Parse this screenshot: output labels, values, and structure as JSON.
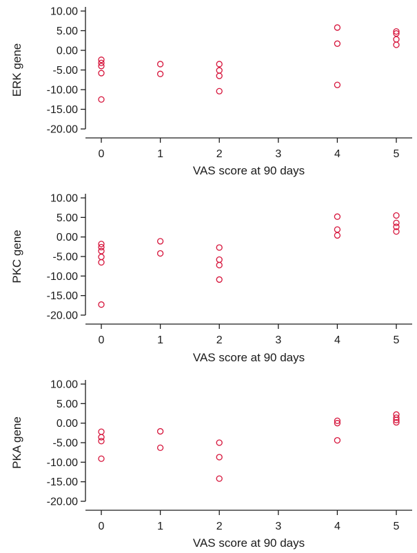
{
  "chart_data": [
    {
      "type": "scatter",
      "xlabel": "VAS score at 90 days",
      "ylabel": "ERK gene",
      "xlim": [
        -0.25,
        5.25
      ],
      "ylim": [
        -20,
        10
      ],
      "xticks": [
        "0",
        "1",
        "2",
        "3",
        "4",
        "5"
      ],
      "yticks": [
        "10.00",
        "5.00",
        "0.00",
        "-5.00",
        "-10.00",
        "-15.00",
        "-20.00"
      ],
      "marker": "open-circle",
      "color": "#d6133a",
      "grid": false,
      "points": [
        {
          "x": 0,
          "y": -2.4
        },
        {
          "x": 0,
          "y": -3.2
        },
        {
          "x": 0,
          "y": -4.0
        },
        {
          "x": 0,
          "y": -5.8
        },
        {
          "x": 0,
          "y": -12.5
        },
        {
          "x": 1,
          "y": -3.5
        },
        {
          "x": 1,
          "y": -6.0
        },
        {
          "x": 2,
          "y": -3.5
        },
        {
          "x": 2,
          "y": -5.1
        },
        {
          "x": 2,
          "y": -6.5
        },
        {
          "x": 2,
          "y": -10.4
        },
        {
          "x": 4,
          "y": 5.8
        },
        {
          "x": 4,
          "y": 1.7
        },
        {
          "x": 4,
          "y": -8.8
        },
        {
          "x": 5,
          "y": 4.8
        },
        {
          "x": 5,
          "y": 4.3
        },
        {
          "x": 5,
          "y": 2.8
        },
        {
          "x": 5,
          "y": 1.4
        }
      ]
    },
    {
      "type": "scatter",
      "xlabel": "VAS score at 90 days",
      "ylabel": "PKC gene",
      "xlim": [
        -0.25,
        5.25
      ],
      "ylim": [
        -20,
        10
      ],
      "xticks": [
        "0",
        "1",
        "2",
        "3",
        "4",
        "5"
      ],
      "yticks": [
        "10.00",
        "5.00",
        "0.00",
        "-5.00",
        "-10.00",
        "-15.00",
        "-20.00"
      ],
      "marker": "open-circle",
      "color": "#d6133a",
      "grid": false,
      "points": [
        {
          "x": 0,
          "y": -1.8
        },
        {
          "x": 0,
          "y": -2.6
        },
        {
          "x": 0,
          "y": -3.6
        },
        {
          "x": 0,
          "y": -5.1
        },
        {
          "x": 0,
          "y": -6.5
        },
        {
          "x": 0,
          "y": -17.3
        },
        {
          "x": 1,
          "y": -1.1
        },
        {
          "x": 1,
          "y": -4.2
        },
        {
          "x": 2,
          "y": -2.7
        },
        {
          "x": 2,
          "y": -5.8
        },
        {
          "x": 2,
          "y": -7.2
        },
        {
          "x": 2,
          "y": -10.9
        },
        {
          "x": 4,
          "y": 5.2
        },
        {
          "x": 4,
          "y": 1.9
        },
        {
          "x": 4,
          "y": 0.4
        },
        {
          "x": 5,
          "y": 5.5
        },
        {
          "x": 5,
          "y": 3.6
        },
        {
          "x": 5,
          "y": 2.6
        },
        {
          "x": 5,
          "y": 1.4
        }
      ]
    },
    {
      "type": "scatter",
      "xlabel": "VAS score at 90 days",
      "ylabel": "PKA gene",
      "xlim": [
        -0.25,
        5.25
      ],
      "ylim": [
        -20,
        10
      ],
      "xticks": [
        "0",
        "1",
        "2",
        "3",
        "4",
        "5"
      ],
      "yticks": [
        "10.00",
        "5.00",
        "0.00",
        "-5.00",
        "-10.00",
        "-15.00",
        "-20.00"
      ],
      "marker": "open-circle",
      "color": "#d6133a",
      "grid": false,
      "points": [
        {
          "x": 0,
          "y": -2.2
        },
        {
          "x": 0,
          "y": -3.6
        },
        {
          "x": 0,
          "y": -4.6
        },
        {
          "x": 0,
          "y": -9.1
        },
        {
          "x": 1,
          "y": -2.1
        },
        {
          "x": 1,
          "y": -6.3
        },
        {
          "x": 2,
          "y": -5.0
        },
        {
          "x": 2,
          "y": -8.7
        },
        {
          "x": 2,
          "y": -14.2
        },
        {
          "x": 4,
          "y": 0.6
        },
        {
          "x": 4,
          "y": 0.0
        },
        {
          "x": 4,
          "y": -4.4
        },
        {
          "x": 5,
          "y": 2.2
        },
        {
          "x": 5,
          "y": 1.4
        },
        {
          "x": 5,
          "y": 0.8
        },
        {
          "x": 5,
          "y": 0.2
        }
      ]
    }
  ]
}
